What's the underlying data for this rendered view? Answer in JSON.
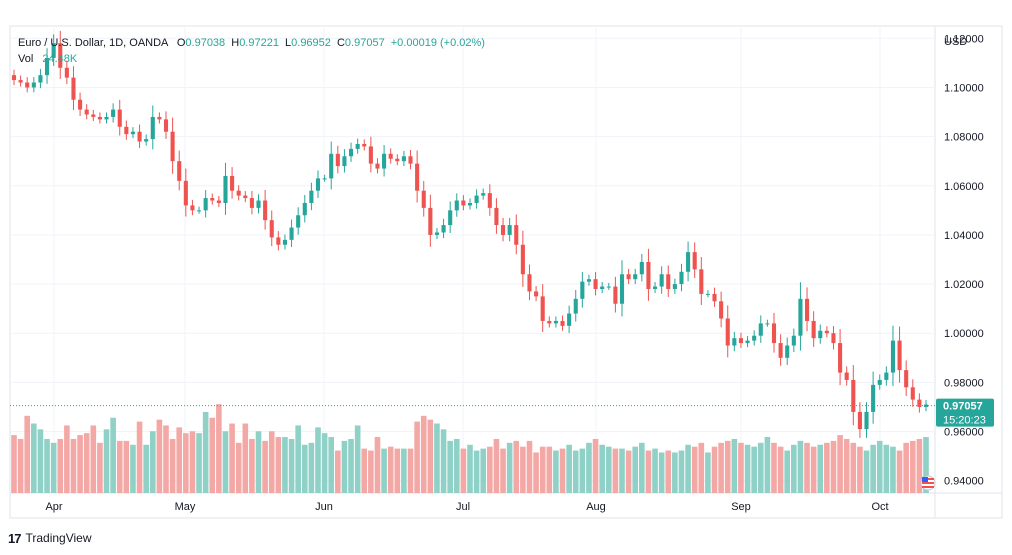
{
  "header": {
    "title": "Euro / U.S. Dollar, 1D, OANDA",
    "open_label": "O",
    "open": "0.97038",
    "high_label": "H",
    "high": "0.97221",
    "low_label": "L",
    "low": "0.96952",
    "close_label": "C",
    "close": "0.97057",
    "change": "+0.00019 (+0.02%)",
    "vol_label": "Vol",
    "vol": "24.48K"
  },
  "price_axis": {
    "currency": "USD",
    "ticks": [
      "1.12000",
      "1.10000",
      "1.08000",
      "1.06000",
      "1.04000",
      "1.02000",
      "1.00000",
      "0.98000",
      "0.96000",
      "0.94000"
    ],
    "ticks_values": [
      1.12,
      1.1,
      1.08,
      1.06,
      1.04,
      1.02,
      1.0,
      0.98,
      0.96,
      0.94
    ]
  },
  "last_price": {
    "value": 0.97057,
    "label": "0.97057",
    "countdown": "15:20:23"
  },
  "time_axis": {
    "labels": [
      "Apr",
      "May",
      "Jun",
      "Jul",
      "Aug",
      "Sep",
      "Oct"
    ]
  },
  "colors": {
    "up": "#26a69a",
    "down": "#ef5350",
    "vol_up": "#8fd1c7",
    "vol_down": "#f4a8a6",
    "grid": "#f0f3fa",
    "axis_text": "#131722"
  },
  "footer": {
    "brand": "TradingView"
  },
  "chart_data": {
    "type": "candlestick",
    "title": "Euro / U.S. Dollar, 1D, OANDA",
    "ylim": [
      0.935,
      1.125
    ],
    "y_ticks": [
      0.94,
      0.96,
      0.98,
      1.0,
      1.02,
      1.04,
      1.06,
      1.08,
      1.1,
      1.12
    ],
    "x_labels": [
      "Apr",
      "May",
      "Jun",
      "Jul",
      "Aug",
      "Sep",
      "Oct"
    ],
    "close": [
      1.103,
      1.102,
      1.1,
      1.102,
      1.105,
      1.112,
      1.118,
      1.108,
      1.104,
      1.095,
      1.091,
      1.089,
      1.088,
      1.087,
      1.088,
      1.091,
      1.084,
      1.081,
      1.082,
      1.078,
      1.079,
      1.088,
      1.087,
      1.082,
      1.07,
      1.062,
      1.052,
      1.05,
      1.05,
      1.055,
      1.054,
      1.053,
      1.064,
      1.058,
      1.056,
      1.055,
      1.051,
      1.054,
      1.046,
      1.039,
      1.036,
      1.038,
      1.043,
      1.048,
      1.053,
      1.058,
      1.063,
      1.063,
      1.073,
      1.068,
      1.072,
      1.075,
      1.077,
      1.076,
      1.069,
      1.067,
      1.073,
      1.071,
      1.07,
      1.072,
      1.069,
      1.058,
      1.051,
      1.04,
      1.041,
      1.044,
      1.05,
      1.054,
      1.052,
      1.053,
      1.056,
      1.057,
      1.051,
      1.044,
      1.04,
      1.044,
      1.036,
      1.024,
      1.017,
      1.015,
      1.005,
      1.004,
      1.005,
      1.003,
      1.008,
      1.014,
      1.021,
      1.022,
      1.018,
      1.019,
      1.019,
      1.012,
      1.024,
      1.022,
      1.024,
      1.029,
      1.018,
      1.019,
      1.024,
      1.018,
      1.02,
      1.025,
      1.033,
      1.026,
      1.016,
      1.016,
      1.013,
      1.006,
      0.995,
      0.998,
      0.996,
      0.997,
      0.999,
      1.004,
      1.004,
      0.996,
      0.99,
      0.995,
      0.999,
      1.014,
      1.005,
      0.998,
      1.001,
      1.0,
      0.996,
      0.984,
      0.981,
      0.968,
      0.961,
      0.968,
      0.979,
      0.981,
      0.984,
      0.997,
      0.985,
      0.978,
      0.973,
      0.97,
      0.971
    ],
    "volume": [
      30,
      28,
      40,
      36,
      33,
      28,
      26,
      28,
      35,
      28,
      30,
      31,
      35,
      26,
      33,
      39,
      27,
      27,
      25,
      37,
      25,
      32,
      38,
      35,
      28,
      34,
      31,
      32,
      31,
      42,
      39,
      46,
      32,
      36,
      26,
      36,
      28,
      32,
      27,
      32,
      29,
      29,
      28,
      35,
      25,
      26,
      34,
      31,
      29,
      22,
      27,
      28,
      35,
      23,
      22,
      29,
      23,
      24,
      23,
      23,
      23,
      37,
      40,
      38,
      36,
      33,
      27,
      28,
      23,
      25,
      22,
      23,
      24,
      28,
      23,
      26,
      27,
      24,
      27,
      21,
      24,
      24,
      22,
      23,
      25,
      22,
      23,
      26,
      28,
      25,
      24,
      23,
      23,
      22,
      24,
      26,
      22,
      23,
      21,
      22,
      21,
      22,
      25,
      24,
      26,
      21,
      24,
      26,
      27,
      28,
      26,
      25,
      24,
      26,
      29,
      26,
      24,
      22,
      25,
      27,
      26,
      24,
      25,
      26,
      27,
      30,
      28,
      26,
      24,
      22,
      25,
      27,
      25,
      24,
      22,
      26,
      27,
      28,
      29
    ],
    "volume_ylim": [
      0,
      100
    ]
  }
}
